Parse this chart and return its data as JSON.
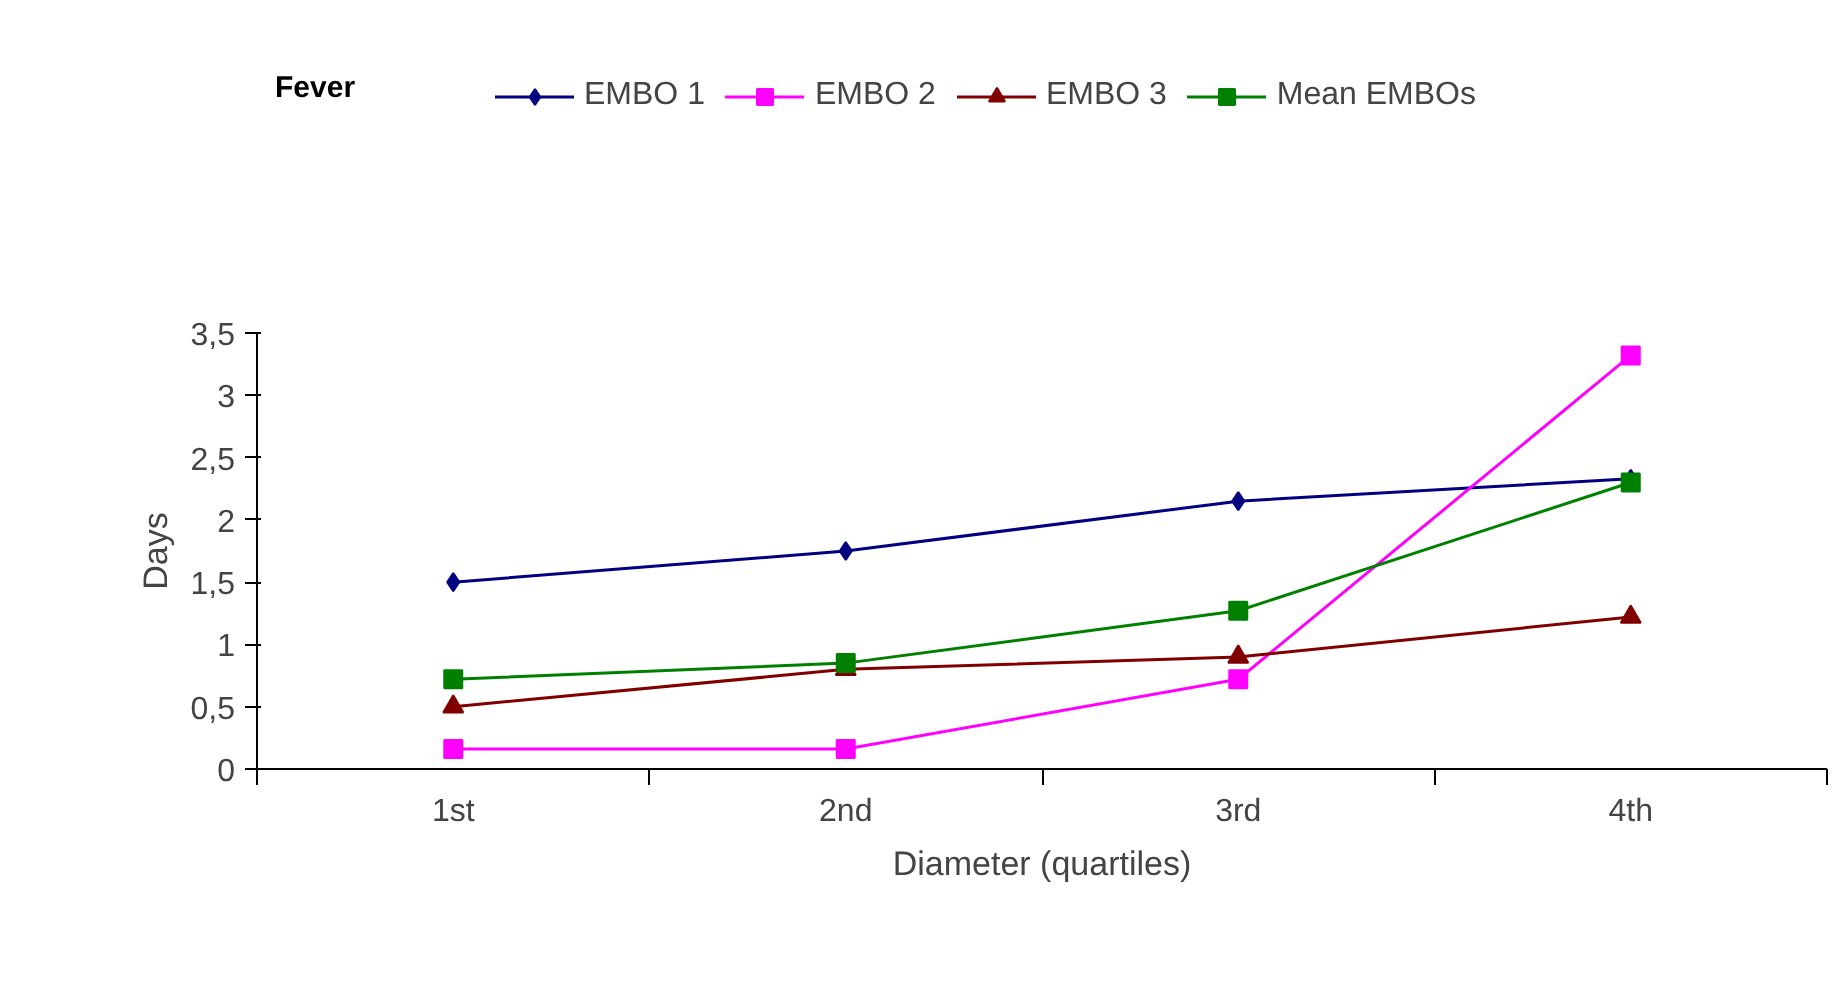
{
  "chart_data": {
    "type": "line",
    "title": "Fever",
    "xlabel": "Diameter (quartiles)",
    "ylabel": "Days",
    "categories": [
      "1st",
      "2nd",
      "3rd",
      "4th"
    ],
    "series": [
      {
        "name": "EMBO 1",
        "color": "#000080",
        "marker": "diamond",
        "values": [
          1.5,
          1.75,
          2.15,
          2.33
        ]
      },
      {
        "name": "EMBO 2",
        "color": "#ff00ff",
        "marker": "square",
        "values": [
          0.16,
          0.16,
          0.72,
          3.32
        ]
      },
      {
        "name": "EMBO 3",
        "color": "#800000",
        "marker": "triangle",
        "values": [
          0.5,
          0.8,
          0.9,
          1.22
        ]
      },
      {
        "name": "Mean EMBOs",
        "color": "#008000",
        "marker": "square",
        "values": [
          0.72,
          0.85,
          1.27,
          2.3
        ]
      }
    ],
    "ylim": [
      0,
      3.5
    ],
    "yticks": [
      0,
      {
        "value": 0.5,
        "label": "0,5"
      },
      1,
      {
        "value": 1.5,
        "label": "1,5"
      },
      2,
      {
        "value": 2.5,
        "label": "2,5"
      },
      3,
      {
        "value": 3.5,
        "label": "3,5"
      }
    ],
    "grid": false,
    "legend": "top",
    "line_style": "solid"
  }
}
